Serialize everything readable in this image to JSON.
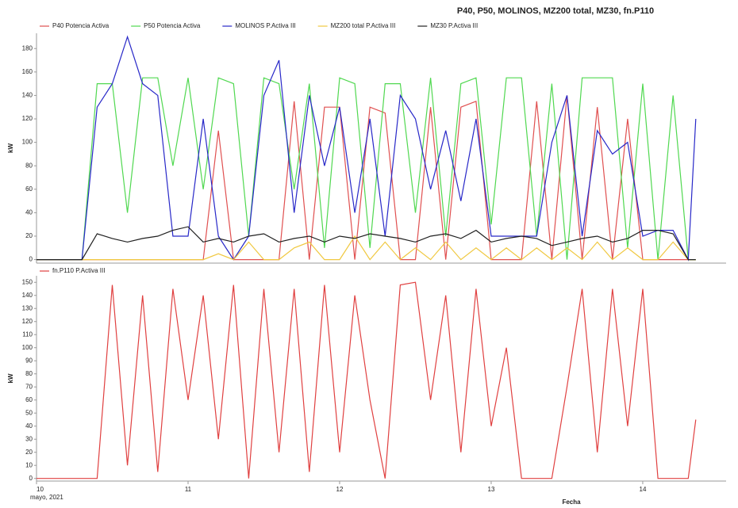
{
  "chart_data": [
    {
      "type": "line",
      "title": "P40, P50, MOLINOS, MZ200 total, MZ30, fn.P110",
      "y_label": "kW",
      "x": [
        10.0,
        10.1,
        10.2,
        10.3,
        10.4,
        10.5,
        10.6,
        10.7,
        10.8,
        10.9,
        11.0,
        11.1,
        11.2,
        11.3,
        11.4,
        11.5,
        11.6,
        11.7,
        11.8,
        11.9,
        12.0,
        12.1,
        12.2,
        12.3,
        12.4,
        12.5,
        12.6,
        12.7,
        12.8,
        12.9,
        13.0,
        13.1,
        13.2,
        13.3,
        13.4,
        13.5,
        13.6,
        13.7,
        13.8,
        13.9,
        14.0,
        14.1,
        14.2,
        14.3,
        14.35
      ],
      "xlim": [
        10,
        14.55
      ],
      "ylim": [
        -3,
        193
      ],
      "yticks": [
        0,
        20,
        40,
        60,
        80,
        100,
        120,
        140,
        160,
        180
      ],
      "series": [
        {
          "name": "P40 Potencia Activa",
          "color": "#e05050",
          "values": [
            0,
            0,
            0,
            0,
            0,
            0,
            0,
            0,
            0,
            0,
            0,
            0,
            110,
            0,
            0,
            0,
            0,
            135,
            0,
            130,
            130,
            0,
            130,
            125,
            0,
            0,
            130,
            0,
            130,
            135,
            0,
            0,
            0,
            135,
            0,
            140,
            0,
            130,
            0,
            120,
            0,
            0,
            0,
            0,
            0
          ]
        },
        {
          "name": "P50 Potencia Activa",
          "color": "#50d850",
          "values": [
            0,
            0,
            0,
            0,
            150,
            150,
            40,
            155,
            155,
            80,
            155,
            60,
            155,
            150,
            20,
            155,
            150,
            60,
            150,
            10,
            155,
            150,
            10,
            150,
            150,
            40,
            155,
            20,
            150,
            155,
            30,
            155,
            155,
            20,
            150,
            0,
            155,
            155,
            155,
            10,
            150,
            0,
            140,
            0,
            0
          ]
        },
        {
          "name": "MOLINOS P.Activa III",
          "color": "#2828c8",
          "values": [
            0,
            0,
            0,
            0,
            130,
            150,
            190,
            150,
            140,
            20,
            20,
            120,
            20,
            0,
            20,
            140,
            170,
            40,
            140,
            80,
            130,
            40,
            120,
            20,
            140,
            120,
            60,
            110,
            50,
            120,
            20,
            20,
            20,
            20,
            100,
            140,
            20,
            110,
            90,
            100,
            20,
            25,
            25,
            0,
            120
          ]
        },
        {
          "name": "MZ200 total P.Activa III",
          "color": "#f0c840",
          "values": [
            0,
            0,
            0,
            0,
            0,
            0,
            0,
            0,
            0,
            0,
            0,
            0,
            5,
            0,
            15,
            0,
            0,
            10,
            15,
            0,
            0,
            20,
            0,
            15,
            0,
            10,
            0,
            15,
            0,
            10,
            0,
            10,
            0,
            10,
            0,
            10,
            0,
            15,
            0,
            10,
            0,
            0,
            15,
            0,
            0
          ]
        },
        {
          "name": "MZ30 P.Activa III",
          "color": "#202020",
          "values": [
            0,
            0,
            0,
            0,
            22,
            18,
            15,
            18,
            20,
            25,
            28,
            15,
            18,
            15,
            20,
            22,
            15,
            18,
            20,
            15,
            20,
            18,
            22,
            20,
            18,
            15,
            20,
            22,
            18,
            25,
            15,
            18,
            20,
            18,
            12,
            15,
            18,
            20,
            15,
            18,
            25,
            25,
            22,
            0,
            0
          ]
        }
      ]
    },
    {
      "type": "line",
      "y_label": "kW",
      "x_label": "Fecha",
      "x_sublabel": "mayo, 2021",
      "x": [
        10.0,
        10.1,
        10.2,
        10.3,
        10.4,
        10.5,
        10.6,
        10.7,
        10.8,
        10.9,
        11.0,
        11.1,
        11.2,
        11.3,
        11.4,
        11.5,
        11.6,
        11.7,
        11.8,
        11.9,
        12.0,
        12.1,
        12.2,
        12.3,
        12.4,
        12.5,
        12.6,
        12.7,
        12.8,
        12.9,
        13.0,
        13.1,
        13.2,
        13.3,
        13.4,
        13.5,
        13.6,
        13.7,
        13.8,
        13.9,
        14.0,
        14.1,
        14.2,
        14.3,
        14.35
      ],
      "xlim": [
        10,
        14.55
      ],
      "xticks": [
        10,
        11,
        12,
        13,
        14
      ],
      "ylim": [
        -2,
        155
      ],
      "yticks": [
        0,
        10,
        20,
        30,
        40,
        50,
        60,
        70,
        80,
        90,
        100,
        110,
        120,
        130,
        140,
        150
      ],
      "series": [
        {
          "name": "fn.P110 P.Activa III",
          "color": "#e04040",
          "values": [
            0,
            0,
            0,
            0,
            0,
            148,
            10,
            140,
            5,
            145,
            60,
            140,
            30,
            148,
            0,
            145,
            20,
            145,
            5,
            148,
            20,
            140,
            60,
            0,
            148,
            150,
            60,
            140,
            20,
            145,
            40,
            100,
            0,
            0,
            0,
            70,
            145,
            20,
            145,
            40,
            145,
            0,
            0,
            0,
            45
          ]
        }
      ]
    }
  ]
}
